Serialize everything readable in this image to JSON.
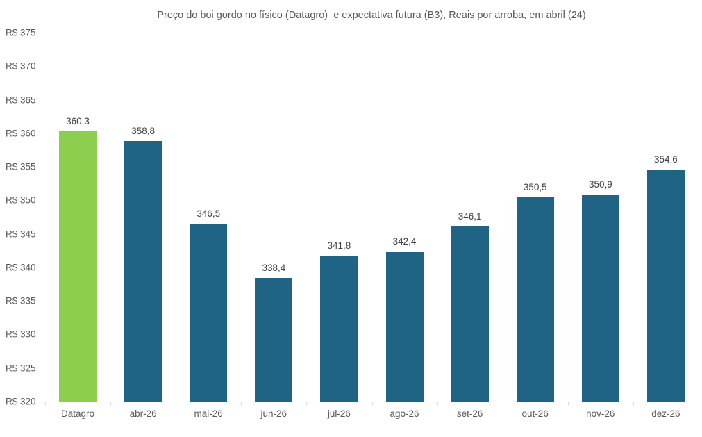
{
  "chart_data": {
    "type": "bar",
    "title": "Preço do boi gordo no físico (Datagro)  e expectativa futura (B3), Reais por arroba, em abril (24)",
    "categories": [
      "Datagro",
      "abr-26",
      "mai-26",
      "jun-26",
      "jul-26",
      "ago-26",
      "set-26",
      "out-26",
      "nov-26",
      "dez-26"
    ],
    "values": [
      360.3,
      358.8,
      346.5,
      338.4,
      341.8,
      342.4,
      346.1,
      350.5,
      350.9,
      354.6
    ],
    "value_labels": [
      "360,3",
      "358,8",
      "346,5",
      "338,4",
      "341,8",
      "342,4",
      "346,1",
      "350,5",
      "350,9",
      "354,6"
    ],
    "bar_colors": [
      "#8dce4f",
      "#1f6385",
      "#1f6385",
      "#1f6385",
      "#1f6385",
      "#1f6385",
      "#1f6385",
      "#1f6385",
      "#1f6385",
      "#1f6385"
    ],
    "highlight_color": "#8dce4f",
    "default_color": "#1f6385",
    "xlabel": "",
    "ylabel": "",
    "ylim": [
      320,
      375
    ],
    "y_ticks": [
      320,
      325,
      330,
      335,
      340,
      345,
      350,
      355,
      360,
      365,
      370,
      375
    ],
    "y_tick_labels": [
      "R$ 320",
      "R$ 325",
      "R$ 330",
      "R$ 335",
      "R$ 340",
      "R$ 345",
      "R$ 350",
      "R$ 355",
      "R$ 360",
      "R$ 365",
      "R$ 370",
      "R$ 375"
    ],
    "grid": false,
    "legend": null,
    "colors": {
      "background": "#ffffff",
      "axis_line": "#d9d9d9",
      "axis_text": "#595959",
      "title_text": "#595959",
      "value_label_text": "#404040"
    }
  }
}
